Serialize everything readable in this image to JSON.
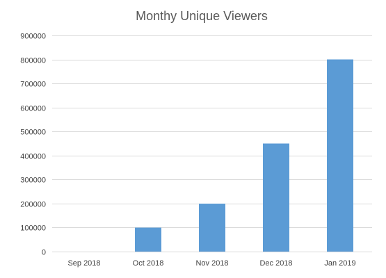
{
  "chart_data": {
    "type": "bar",
    "title": "Monthy Unique Viewers",
    "xlabel": "",
    "ylabel": "",
    "categories": [
      "Sep 2018",
      "Oct 2018",
      "Nov 2018",
      "Dec 2018",
      "Jan 2019"
    ],
    "values": [
      0,
      100000,
      200000,
      450000,
      800000
    ],
    "ylim": [
      0,
      900000
    ],
    "y_ticks": [
      "0",
      "100000",
      "200000",
      "300000",
      "400000",
      "500000",
      "600000",
      "700000",
      "800000",
      "900000"
    ],
    "y_tick_values": [
      0,
      100000,
      200000,
      300000,
      400000,
      500000,
      600000,
      700000,
      800000,
      900000
    ],
    "grid": true,
    "legend": "none",
    "bar_color": "#5b9bd5"
  }
}
